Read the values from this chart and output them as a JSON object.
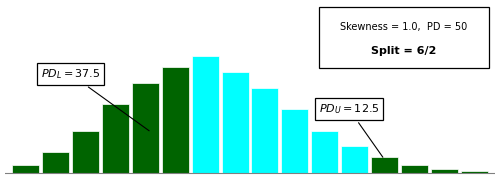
{
  "bar_heights": [
    1.5,
    4,
    8,
    13,
    17,
    20,
    22,
    19,
    16,
    12,
    8,
    5,
    3,
    1.5,
    0.7,
    0.3
  ],
  "bar_colors": [
    "#006400",
    "#006400",
    "#006400",
    "#006400",
    "#006400",
    "#006400",
    "#00FFFF",
    "#00FFFF",
    "#00FFFF",
    "#00FFFF",
    "#00FFFF",
    "#00FFFF",
    "#006400",
    "#006400",
    "#006400",
    "#006400"
  ],
  "background_color": "#ffffff",
  "annotation_PDL": "$PD_{L} = 37.5$",
  "annotation_PDU": "$PD_{U} = 12.5$",
  "info_line1": "Skewness = 1.0,  PD = 50",
  "info_line2_bold": "Split = 6/2"
}
